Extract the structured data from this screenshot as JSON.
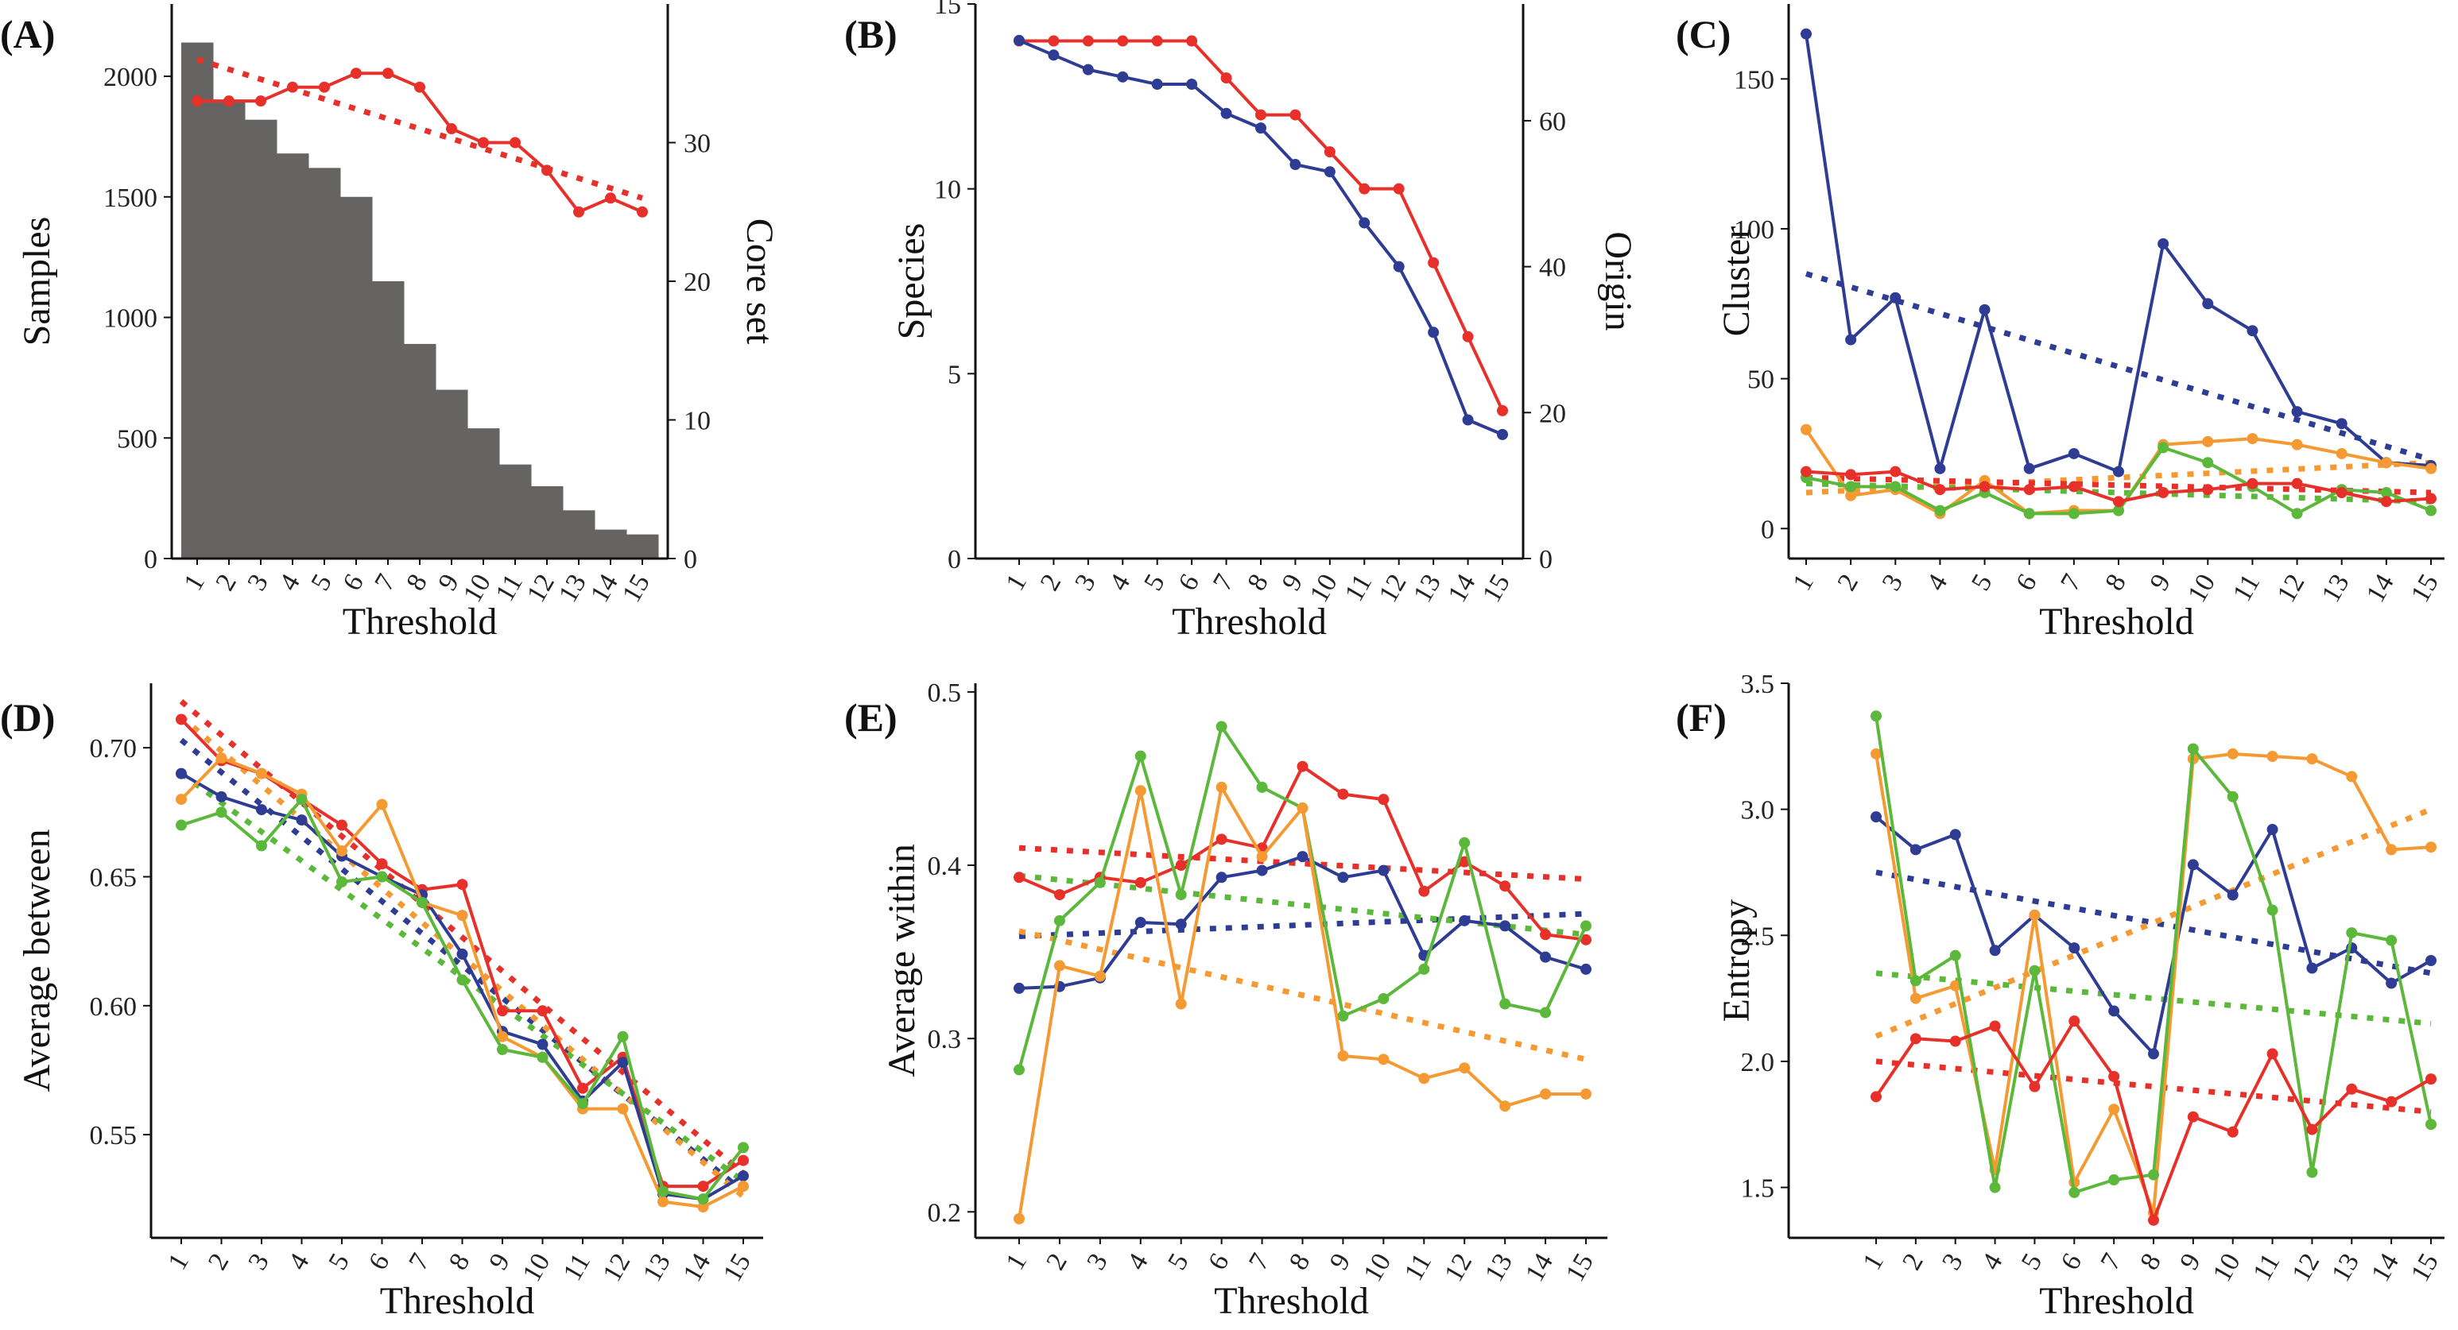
{
  "colors": {
    "red": "#e8302a",
    "blue": "#2e3d93",
    "green": "#5cb83a",
    "orange": "#f59a32",
    "bar": "#666462"
  },
  "chart_data": [
    {
      "id": "A",
      "label": "(A)",
      "type": "bar",
      "xlabel": "Threshold",
      "ylabel": "Samples",
      "y2label": "Core set",
      "categories": [
        "1",
        "2",
        "3",
        "4",
        "5",
        "6",
        "7",
        "8",
        "9",
        "10",
        "11",
        "12",
        "13",
        "14",
        "15"
      ],
      "ylim": [
        0,
        2300
      ],
      "y2lim": [
        0,
        40
      ],
      "yticks": [
        0,
        500,
        1000,
        1500,
        2000
      ],
      "y2ticks": [
        0,
        10,
        20,
        30
      ],
      "bars": [
        2140,
        1900,
        1820,
        1680,
        1620,
        1500,
        1150,
        890,
        700,
        540,
        390,
        300,
        200,
        120,
        100
      ],
      "series": [
        {
          "color": "red",
          "axis": "right",
          "values": [
            33,
            33,
            33,
            34,
            34,
            35,
            35,
            34,
            31,
            30,
            30,
            28,
            25,
            26,
            25
          ],
          "trend": [
            36,
            26
          ]
        }
      ]
    },
    {
      "id": "B",
      "label": "(B)",
      "type": "line",
      "xlabel": "Threshold",
      "ylabel": "Species",
      "y2label": "Origin",
      "categories": [
        "1",
        "2",
        "3",
        "4",
        "5",
        "6",
        "7",
        "8",
        "9",
        "10",
        "11",
        "12",
        "13",
        "14",
        "15"
      ],
      "ylim": [
        0,
        15
      ],
      "y2lim": [
        0,
        76
      ],
      "yticks": [
        0,
        5,
        10,
        15
      ],
      "y2ticks": [
        0,
        20,
        40,
        60
      ],
      "series": [
        {
          "color": "red",
          "axis": "left",
          "values": [
            14,
            14,
            14,
            14,
            14,
            14,
            13,
            12,
            12,
            11,
            10,
            10,
            8,
            6,
            4
          ]
        },
        {
          "color": "blue",
          "axis": "right",
          "values": [
            71,
            69,
            67,
            66,
            65,
            65,
            61,
            59,
            54,
            53,
            46,
            40,
            31,
            19,
            17
          ]
        }
      ]
    },
    {
      "id": "C",
      "label": "(C)",
      "type": "line",
      "xlabel": "Threshold",
      "ylabel": "Cluster",
      "categories": [
        "1",
        "2",
        "3",
        "4",
        "5",
        "6",
        "7",
        "8",
        "9",
        "10",
        "11",
        "12",
        "13",
        "14",
        "15"
      ],
      "ylim": [
        -10,
        175
      ],
      "yticks": [
        0,
        50,
        100,
        150
      ],
      "series": [
        {
          "color": "blue",
          "values": [
            165,
            63,
            77,
            20,
            73,
            20,
            25,
            19,
            95,
            75,
            66,
            39,
            35,
            22,
            21
          ],
          "trend": [
            85,
            23
          ]
        },
        {
          "color": "orange",
          "values": [
            33,
            11,
            13,
            5,
            16,
            5,
            6,
            6,
            28,
            29,
            30,
            28,
            25,
            22,
            20
          ],
          "trend": [
            12,
            22
          ]
        },
        {
          "color": "green",
          "values": [
            17,
            14,
            14,
            6,
            12,
            5,
            5,
            6,
            27,
            22,
            14,
            5,
            13,
            12,
            6
          ],
          "trend": [
            15,
            9
          ]
        },
        {
          "color": "red",
          "values": [
            19,
            18,
            19,
            13,
            14,
            13,
            14,
            9,
            12,
            13,
            15,
            15,
            12,
            9,
            10
          ],
          "trend": [
            17,
            12
          ]
        }
      ]
    },
    {
      "id": "D",
      "label": "(D)",
      "type": "line",
      "xlabel": "Threshold",
      "ylabel": "Average between",
      "categories": [
        "1",
        "2",
        "3",
        "4",
        "5",
        "6",
        "7",
        "8",
        "9",
        "10",
        "11",
        "12",
        "13",
        "14",
        "15"
      ],
      "ylim": [
        0.51,
        0.725
      ],
      "yticks": [
        0.55,
        0.6,
        0.65,
        0.7
      ],
      "yticklabels": [
        "0.55",
        "0.60",
        "0.65",
        "0.70"
      ],
      "series": [
        {
          "color": "red",
          "values": [
            0.711,
            0.695,
            0.69,
            0.68,
            0.67,
            0.655,
            0.645,
            0.647,
            0.598,
            0.598,
            0.568,
            0.58,
            0.53,
            0.53,
            0.54
          ],
          "trend": [
            0.718,
            0.535
          ]
        },
        {
          "color": "blue",
          "values": [
            0.69,
            0.681,
            0.676,
            0.672,
            0.658,
            0.65,
            0.643,
            0.62,
            0.59,
            0.585,
            0.563,
            0.578,
            0.527,
            0.525,
            0.534
          ],
          "trend": [
            0.703,
            0.528
          ]
        },
        {
          "color": "orange",
          "values": [
            0.68,
            0.696,
            0.69,
            0.682,
            0.66,
            0.678,
            0.64,
            0.635,
            0.588,
            0.58,
            0.56,
            0.56,
            0.524,
            0.522,
            0.53
          ],
          "trend": [
            0.712,
            0.526
          ]
        },
        {
          "color": "green",
          "values": [
            0.67,
            0.675,
            0.662,
            0.68,
            0.648,
            0.65,
            0.64,
            0.61,
            0.583,
            0.58,
            0.562,
            0.588,
            0.528,
            0.525,
            0.545
          ],
          "trend": [
            0.69,
            0.532
          ]
        }
      ]
    },
    {
      "id": "E",
      "label": "(E)",
      "type": "line",
      "xlabel": "Threshold",
      "ylabel": "Average within",
      "categories": [
        "1",
        "2",
        "3",
        "4",
        "5",
        "6",
        "7",
        "8",
        "9",
        "10",
        "11",
        "12",
        "13",
        "14",
        "15"
      ],
      "ylim": [
        0.185,
        0.505
      ],
      "yticks": [
        0.2,
        0.3,
        0.4,
        0.5
      ],
      "series": [
        {
          "color": "red",
          "values": [
            0.393,
            0.383,
            0.393,
            0.39,
            0.4,
            0.415,
            0.41,
            0.457,
            0.441,
            0.438,
            0.385,
            0.402,
            0.388,
            0.36,
            0.357
          ],
          "trend": [
            0.41,
            0.392
          ]
        },
        {
          "color": "blue",
          "values": [
            0.329,
            0.33,
            0.335,
            0.367,
            0.366,
            0.393,
            0.397,
            0.405,
            0.393,
            0.397,
            0.348,
            0.368,
            0.365,
            0.347,
            0.34
          ],
          "trend": [
            0.359,
            0.372
          ]
        },
        {
          "color": "green",
          "values": [
            0.282,
            0.368,
            0.39,
            0.463,
            0.383,
            0.48,
            0.445,
            0.433,
            0.313,
            0.323,
            0.34,
            0.413,
            0.32,
            0.315,
            0.365
          ],
          "trend": [
            0.394,
            0.36
          ]
        },
        {
          "color": "orange",
          "values": [
            0.196,
            0.342,
            0.336,
            0.443,
            0.32,
            0.445,
            0.405,
            0.433,
            0.29,
            0.288,
            0.277,
            0.283,
            0.261,
            0.268,
            0.268
          ],
          "trend": [
            0.362,
            0.288
          ]
        }
      ]
    },
    {
      "id": "F",
      "label": "(F)",
      "type": "line",
      "xlabel": "Threshold",
      "ylabel": "Entropy",
      "categories": [
        "1",
        "2",
        "3",
        "4",
        "5",
        "6",
        "7",
        "8",
        "9",
        "10",
        "11",
        "12",
        "13",
        "14",
        "15"
      ],
      "ylim": [
        1.3,
        3.5
      ],
      "yticks": [
        1.5,
        2.0,
        2.5,
        3.0,
        3.5
      ],
      "yticklabels": [
        "1.5",
        "2.0",
        "2.5",
        "3.0",
        "3.5"
      ],
      "series": [
        {
          "color": "blue",
          "values": [
            2.97,
            2.84,
            2.9,
            2.44,
            2.58,
            2.45,
            2.2,
            2.03,
            2.78,
            2.66,
            2.92,
            2.37,
            2.45,
            2.31,
            2.4
          ],
          "trend": [
            2.75,
            2.35
          ]
        },
        {
          "color": "orange",
          "values": [
            3.22,
            2.25,
            2.3,
            1.57,
            2.58,
            1.52,
            1.81,
            1.4,
            3.2,
            3.22,
            3.21,
            3.2,
            3.13,
            2.84,
            2.85
          ],
          "trend": [
            2.1,
            3.0
          ]
        },
        {
          "color": "green",
          "values": [
            3.37,
            2.32,
            2.42,
            1.5,
            2.36,
            1.48,
            1.53,
            1.55,
            3.24,
            3.05,
            2.6,
            1.56,
            2.51,
            2.48,
            1.75
          ],
          "trend": [
            2.35,
            2.15
          ]
        },
        {
          "color": "red",
          "values": [
            1.86,
            2.09,
            2.08,
            2.14,
            1.9,
            2.16,
            1.94,
            1.37,
            1.78,
            1.72,
            2.03,
            1.73,
            1.89,
            1.84,
            1.93
          ],
          "trend": [
            2.0,
            1.8
          ]
        }
      ]
    }
  ]
}
